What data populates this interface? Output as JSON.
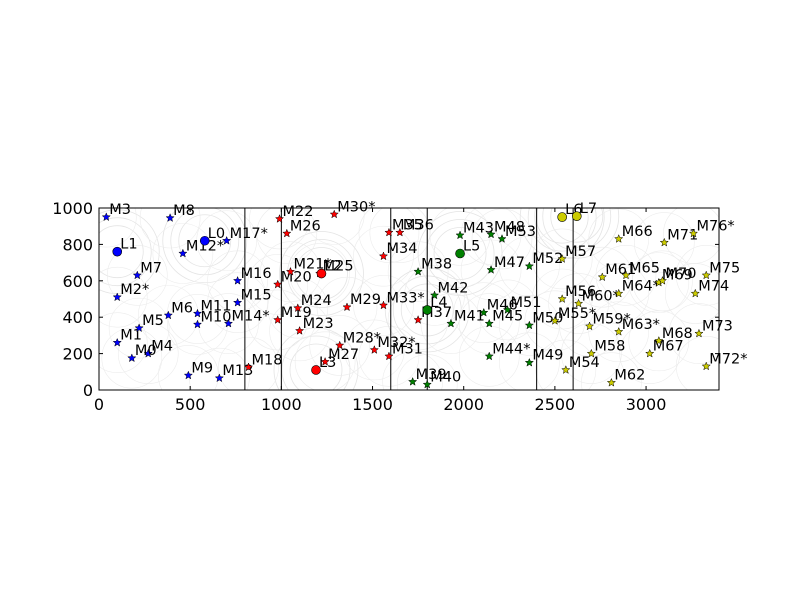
{
  "chart_data": {
    "type": "scatter",
    "title": "",
    "xlabel": "",
    "ylabel": "",
    "xlim": [
      0,
      3400
    ],
    "ylim": [
      0,
      1000
    ],
    "x_ticks": [
      0,
      500,
      1000,
      1500,
      2000,
      2500,
      3000
    ],
    "y_ticks": [
      0,
      200,
      400,
      600,
      800,
      1000
    ],
    "x_tick_labels": [
      "0",
      "500",
      "1000",
      "1500",
      "2000",
      "2500",
      "3000"
    ],
    "y_tick_labels": [
      "0",
      "200",
      "400",
      "600",
      "800",
      "1000"
    ],
    "vertical_lines": [
      800,
      1000,
      1600,
      1800,
      2400,
      2600
    ],
    "grid": false,
    "legend": "none",
    "background_circles": "light gray circles around each landmark (decorative)",
    "landmark_marker": "circle",
    "measurement_marker": "star",
    "series": [
      {
        "color": "#0000ff",
        "landmarks": [
          {
            "label": "L0",
            "x": 580,
            "y": 820
          },
          {
            "label": "L1",
            "x": 100,
            "y": 760
          }
        ],
        "measurements": [
          {
            "label": "M1",
            "x": 100,
            "y": 260
          },
          {
            "label": "M2*",
            "x": 100,
            "y": 510
          },
          {
            "label": "M3",
            "x": 40,
            "y": 950
          },
          {
            "label": "M4",
            "x": 270,
            "y": 200
          },
          {
            "label": "M5",
            "x": 220,
            "y": 340
          },
          {
            "label": "M6",
            "x": 380,
            "y": 410
          },
          {
            "label": "M7",
            "x": 210,
            "y": 630
          },
          {
            "label": "M8",
            "x": 390,
            "y": 945
          },
          {
            "label": "M9",
            "x": 490,
            "y": 80
          },
          {
            "label": "M10",
            "x": 540,
            "y": 360
          },
          {
            "label": "M11",
            "x": 540,
            "y": 420
          },
          {
            "label": "M12*",
            "x": 460,
            "y": 750
          },
          {
            "label": "M13",
            "x": 660,
            "y": 65
          },
          {
            "label": "M14*",
            "x": 710,
            "y": 365
          },
          {
            "label": "M15",
            "x": 760,
            "y": 480
          },
          {
            "label": "M16",
            "x": 760,
            "y": 600
          },
          {
            "label": "M17*",
            "x": 700,
            "y": 820
          },
          {
            "label": "M0",
            "x": 180,
            "y": 175
          }
        ]
      },
      {
        "color": "#ff0000",
        "landmarks": [
          {
            "label": "L2",
            "x": 1220,
            "y": 640
          },
          {
            "label": "L3",
            "x": 1190,
            "y": 110
          }
        ],
        "measurements": [
          {
            "label": "M18",
            "x": 820,
            "y": 125
          },
          {
            "label": "M19",
            "x": 980,
            "y": 385
          },
          {
            "label": "M20",
            "x": 980,
            "y": 580
          },
          {
            "label": "M21*",
            "x": 1050,
            "y": 650
          },
          {
            "label": "M22",
            "x": 990,
            "y": 940
          },
          {
            "label": "M23",
            "x": 1100,
            "y": 325
          },
          {
            "label": "M24",
            "x": 1090,
            "y": 450
          },
          {
            "label": "M25",
            "x": 1210,
            "y": 640
          },
          {
            "label": "M26",
            "x": 1030,
            "y": 860
          },
          {
            "label": "M27",
            "x": 1240,
            "y": 155
          },
          {
            "label": "M28*",
            "x": 1320,
            "y": 245
          },
          {
            "label": "M29",
            "x": 1360,
            "y": 455
          },
          {
            "label": "M30*",
            "x": 1290,
            "y": 965
          },
          {
            "label": "M31",
            "x": 1590,
            "y": 185
          },
          {
            "label": "M32*",
            "x": 1510,
            "y": 220
          },
          {
            "label": "M33*",
            "x": 1560,
            "y": 465
          },
          {
            "label": "M34",
            "x": 1560,
            "y": 735
          },
          {
            "label": "M35",
            "x": 1590,
            "y": 865
          },
          {
            "label": "M36",
            "x": 1650,
            "y": 865
          },
          {
            "label": "M37",
            "x": 1750,
            "y": 385
          }
        ]
      },
      {
        "color": "#008000",
        "landmarks": [
          {
            "label": "L4",
            "x": 1800,
            "y": 440
          },
          {
            "label": "L5",
            "x": 1980,
            "y": 750
          }
        ],
        "measurements": [
          {
            "label": "M38",
            "x": 1750,
            "y": 650
          },
          {
            "label": "M39",
            "x": 1720,
            "y": 45
          },
          {
            "label": "M40",
            "x": 1800,
            "y": 30
          },
          {
            "label": "M41",
            "x": 1930,
            "y": 365
          },
          {
            "label": "M42",
            "x": 1840,
            "y": 520
          },
          {
            "label": "M43",
            "x": 1980,
            "y": 850
          },
          {
            "label": "M44*",
            "x": 2140,
            "y": 185
          },
          {
            "label": "M45",
            "x": 2140,
            "y": 365
          },
          {
            "label": "M46",
            "x": 2110,
            "y": 425
          },
          {
            "label": "M47",
            "x": 2150,
            "y": 660
          },
          {
            "label": "M48",
            "x": 2150,
            "y": 855
          },
          {
            "label": "M49",
            "x": 2360,
            "y": 150
          },
          {
            "label": "M50",
            "x": 2360,
            "y": 355
          },
          {
            "label": "M51",
            "x": 2240,
            "y": 440
          },
          {
            "label": "M52",
            "x": 2360,
            "y": 680
          },
          {
            "label": "M53",
            "x": 2210,
            "y": 830
          }
        ]
      },
      {
        "color": "#cccc00",
        "landmarks": [
          {
            "label": "L6",
            "x": 2540,
            "y": 950
          },
          {
            "label": "L7",
            "x": 2620,
            "y": 955
          }
        ],
        "measurements": [
          {
            "label": "M54",
            "x": 2560,
            "y": 110
          },
          {
            "label": "M55*",
            "x": 2500,
            "y": 380
          },
          {
            "label": "M56",
            "x": 2540,
            "y": 500
          },
          {
            "label": "M57",
            "x": 2540,
            "y": 720
          },
          {
            "label": "M58",
            "x": 2700,
            "y": 200
          },
          {
            "label": "M59*",
            "x": 2690,
            "y": 350
          },
          {
            "label": "M60*",
            "x": 2630,
            "y": 475
          },
          {
            "label": "M61",
            "x": 2760,
            "y": 620
          },
          {
            "label": "M62",
            "x": 2810,
            "y": 40
          },
          {
            "label": "M63*",
            "x": 2850,
            "y": 320
          },
          {
            "label": "M64*",
            "x": 2850,
            "y": 530
          },
          {
            "label": "M65",
            "x": 2890,
            "y": 630
          },
          {
            "label": "M66",
            "x": 2850,
            "y": 830
          },
          {
            "label": "M67",
            "x": 3020,
            "y": 200
          },
          {
            "label": "M68",
            "x": 3070,
            "y": 270
          },
          {
            "label": "M69",
            "x": 3070,
            "y": 590
          },
          {
            "label": "M70",
            "x": 3090,
            "y": 600
          },
          {
            "label": "M71",
            "x": 3100,
            "y": 810
          },
          {
            "label": "M72*",
            "x": 3330,
            "y": 130
          },
          {
            "label": "M73",
            "x": 3290,
            "y": 310
          },
          {
            "label": "M74",
            "x": 3270,
            "y": 530
          },
          {
            "label": "M75",
            "x": 3330,
            "y": 630
          },
          {
            "label": "M76*",
            "x": 3260,
            "y": 860
          }
        ]
      }
    ]
  }
}
